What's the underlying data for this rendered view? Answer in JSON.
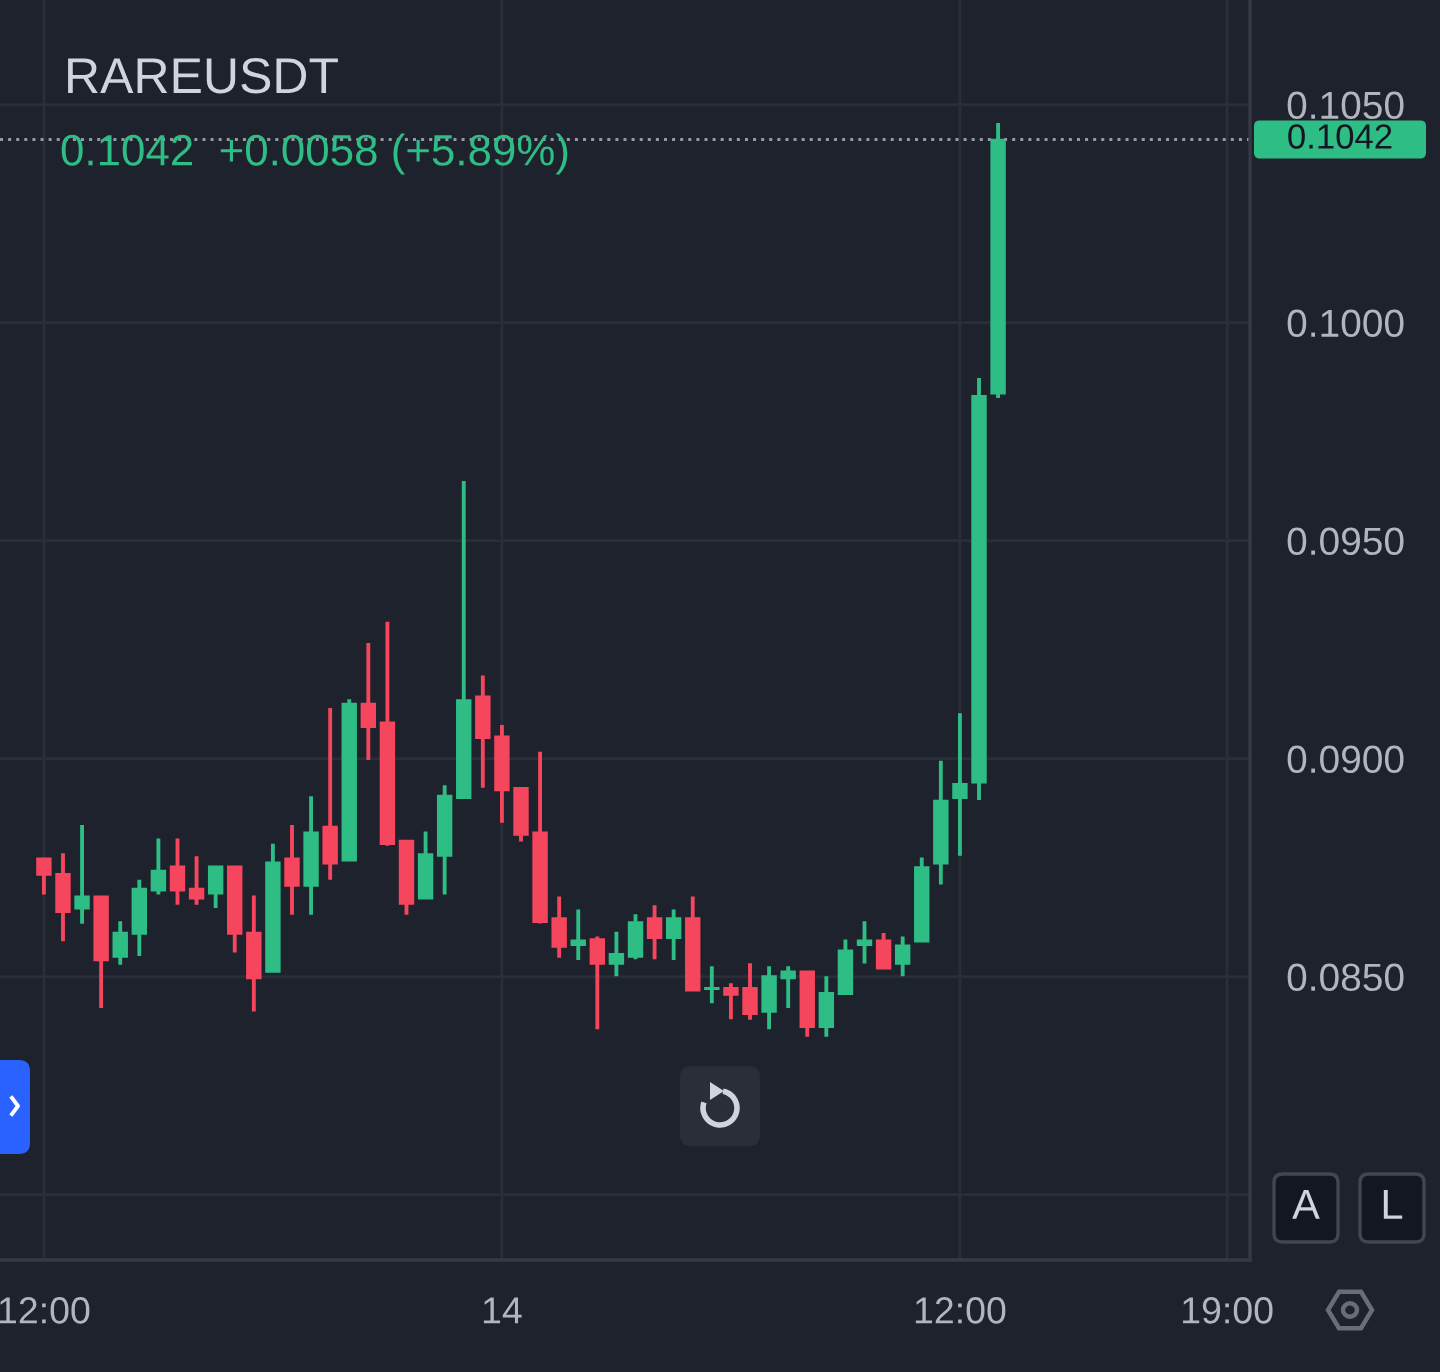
{
  "chart_data": {
    "type": "candlestick",
    "title": "RAREUSDT",
    "subtitle": "0.1042  +0.0058 (+5.89%)",
    "categories": [
      "12:00",
      null,
      null,
      null,
      null,
      null,
      null,
      null,
      null,
      null,
      null,
      null,
      null,
      null,
      null,
      null,
      null,
      null,
      null,
      null,
      null,
      null,
      null,
      null,
      "14",
      null,
      null,
      null,
      null,
      null,
      null,
      null,
      null,
      null,
      null,
      null,
      null,
      null,
      null,
      null,
      null,
      null,
      null,
      null,
      null,
      null,
      null,
      null,
      "12:00",
      null,
      null,
      null,
      null,
      null,
      null,
      null,
      null,
      null,
      null,
      null,
      null,
      null,
      "19:00"
    ],
    "ohlc": [
      [
        0.08771,
        0.08771,
        0.0869,
        0.08733
      ],
      [
        0.08736,
        0.08781,
        0.08583,
        0.08648
      ],
      [
        0.08656,
        0.08846,
        0.08623,
        0.08684
      ],
      [
        0.08684,
        0.08684,
        0.0843,
        0.08537
      ],
      [
        0.08545,
        0.08625,
        0.08529,
        0.08601
      ],
      [
        0.08598,
        0.0872,
        0.08549,
        0.08702
      ],
      [
        0.08697,
        0.08815,
        0.0869,
        0.08743
      ],
      [
        0.08753,
        0.08815,
        0.08667,
        0.08697
      ],
      [
        0.08702,
        0.08774,
        0.08667,
        0.08679
      ],
      [
        0.0869,
        0.08753,
        0.08659,
        0.08753
      ],
      [
        0.08753,
        0.08753,
        0.08557,
        0.08598
      ],
      [
        0.08601,
        0.08684,
        0.08422,
        0.08496
      ],
      [
        0.08511,
        0.08803,
        0.08511,
        0.08762
      ],
      [
        0.08771,
        0.08846,
        0.08644,
        0.08708
      ],
      [
        0.08708,
        0.08912,
        0.08644,
        0.08831
      ],
      [
        0.08844,
        0.09114,
        0.08724,
        0.08759
      ],
      [
        0.08766,
        0.09134,
        0.08766,
        0.09126
      ],
      [
        0.09126,
        0.09263,
        0.08999,
        0.09072
      ],
      [
        0.09083,
        0.09312,
        0.08802,
        0.08804
      ],
      [
        0.08812,
        0.08812,
        0.08644,
        0.08667
      ],
      [
        0.08679,
        0.08831,
        0.08679,
        0.08781
      ],
      [
        0.08777,
        0.08937,
        0.0869,
        0.08915
      ],
      [
        0.08909,
        0.09635,
        0.08909,
        0.09134
      ],
      [
        0.09143,
        0.09189,
        0.08935,
        0.09047
      ],
      [
        0.09051,
        0.09075,
        0.08855,
        0.08927
      ],
      [
        0.08933,
        0.08933,
        0.08812,
        0.08825
      ],
      [
        0.08831,
        0.09014,
        0.08624,
        0.08625
      ],
      [
        0.08634,
        0.08682,
        0.08545,
        0.08568
      ],
      [
        0.08572,
        0.08652,
        0.0854,
        0.08583
      ],
      [
        0.08586,
        0.0859,
        0.08381,
        0.08529
      ],
      [
        0.08529,
        0.08601,
        0.08503,
        0.08552
      ],
      [
        0.08545,
        0.08641,
        0.08542,
        0.08625
      ],
      [
        0.08634,
        0.08662,
        0.08542,
        0.08588
      ],
      [
        0.08588,
        0.08652,
        0.0854,
        0.08634
      ],
      [
        0.08634,
        0.08682,
        0.08468,
        0.08468
      ],
      [
        0.08471,
        0.08522,
        0.08441,
        0.08474
      ],
      [
        0.08474,
        0.08483,
        0.08404,
        0.08458
      ],
      [
        0.08474,
        0.08529,
        0.08403,
        0.08414
      ],
      [
        0.08419,
        0.08522,
        0.08381,
        0.08501
      ],
      [
        0.08496,
        0.08522,
        0.0843,
        0.08512
      ],
      [
        0.08512,
        0.08512,
        0.08364,
        0.08384
      ],
      [
        0.08384,
        0.08499,
        0.08364,
        0.08463
      ],
      [
        0.0846,
        0.08583,
        0.0846,
        0.0856
      ],
      [
        0.08572,
        0.08625,
        0.08532,
        0.08583
      ],
      [
        0.08583,
        0.08598,
        0.08518,
        0.08518
      ],
      [
        0.08529,
        0.0859,
        0.08503,
        0.08572
      ],
      [
        0.0858,
        0.08771,
        0.0858,
        0.08751
      ],
      [
        0.08759,
        0.08993,
        0.08713,
        0.08904
      ],
      [
        0.08909,
        0.09102,
        0.08779,
        0.08942
      ],
      [
        0.08945,
        0.09871,
        0.08907,
        0.09832
      ],
      [
        0.09837,
        0.10456,
        0.09829,
        0.1042
      ],
      null,
      null,
      null,
      null,
      null,
      null,
      null,
      null,
      null,
      null,
      null,
      null
    ],
    "colors": [
      "#f6465d",
      "#f6465d",
      "#2ebd85",
      "#f6465d",
      "#2ebd85",
      "#2ebd85",
      "#2ebd85",
      "#f6465d",
      "#f6465d",
      "#2ebd85",
      "#f6465d",
      "#f6465d",
      "#2ebd85",
      "#f6465d",
      "#2ebd85",
      "#f6465d",
      "#2ebd85",
      "#f6465d",
      "#f6465d",
      "#f6465d",
      "#2ebd85",
      "#2ebd85",
      "#2ebd85",
      "#f6465d",
      "#f6465d",
      "#f6465d",
      "#f6465d",
      "#f6465d",
      "#2ebd85",
      "#f6465d",
      "#2ebd85",
      "#2ebd85",
      "#f6465d",
      "#2ebd85",
      "#f6465d",
      "#2ebd85",
      "#f6465d",
      "#f6465d",
      "#2ebd85",
      "#2ebd85",
      "#f6465d",
      "#2ebd85",
      "#2ebd85",
      "#2ebd85",
      "#f6465d",
      "#2ebd85",
      "#2ebd85",
      "#2ebd85",
      "#2ebd85",
      "#2ebd85",
      "#2ebd85",
      null,
      null,
      null,
      null,
      null,
      null,
      null,
      null,
      null,
      null,
      null,
      null
    ],
    "ylim": [
      0.0785,
      0.1074
    ],
    "yticks": [
      {
        "value": 0.08,
        "label": null
      },
      {
        "value": 0.085,
        "label": "0.0850"
      },
      {
        "value": 0.09,
        "label": "0.0900"
      },
      {
        "value": 0.095,
        "label": "0.0950"
      },
      {
        "value": 0.1,
        "label": "0.1000"
      },
      {
        "value": 0.105,
        "label": "0.1050"
      }
    ],
    "ref_lines": [
      {
        "axis": "y",
        "value": 0.1042,
        "label": "0.1042",
        "color": "#9598a1",
        "line_style": "dotted"
      }
    ],
    "annotations": [
      "A",
      "L"
    ],
    "grid": true
  }
}
